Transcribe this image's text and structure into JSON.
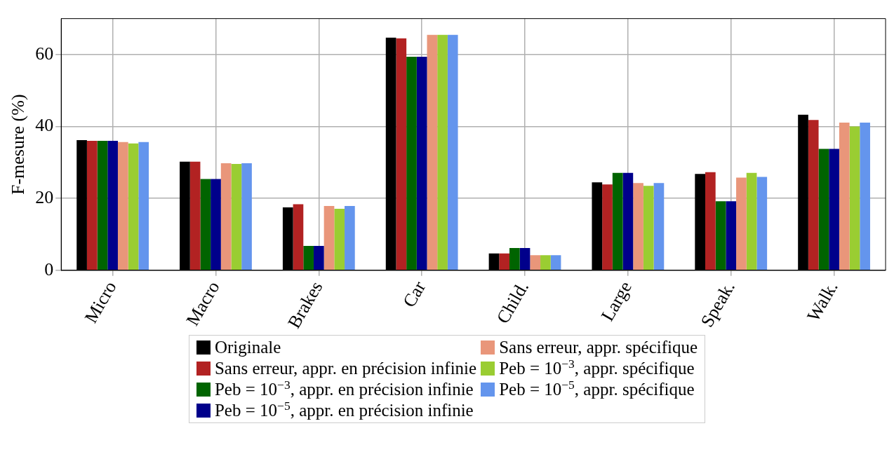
{
  "chart_data": {
    "type": "bar",
    "ylabel": "F-mesure (%)",
    "categories": [
      "Micro",
      "Macro",
      "Brakes",
      "Car",
      "Child.",
      "Large",
      "Speak.",
      "Walk."
    ],
    "ylim": [
      0,
      70
    ],
    "yticks": [
      0,
      20,
      40,
      60
    ],
    "grid": true,
    "legend": "bottom",
    "series": [
      {
        "name": "Originale",
        "color": "#000000",
        "values": [
          36.2,
          30.2,
          17.5,
          64.7,
          4.7,
          24.5,
          26.8,
          43.3
        ]
      },
      {
        "name": "Sans erreur, appr. en précision infinie",
        "color": "#b22222",
        "values": [
          36.0,
          30.2,
          18.4,
          64.5,
          4.7,
          23.9,
          27.3,
          41.8
        ]
      },
      {
        "name": "Peb = 10$^{−3}$, appr. en précision infinie",
        "color": "#006400",
        "values": [
          36.0,
          25.4,
          6.8,
          59.4,
          6.2,
          27.1,
          19.2,
          33.8
        ]
      },
      {
        "name": "Peb = 10$^{−5}$, appr. en précision infinie",
        "color": "#00008b",
        "values": [
          36.0,
          25.4,
          6.8,
          59.4,
          6.2,
          27.1,
          19.2,
          33.8
        ]
      },
      {
        "name": "Sans erreur, appr. spécifique",
        "color": "#e9967a",
        "values": [
          35.7,
          29.8,
          17.9,
          65.5,
          4.2,
          24.3,
          25.8,
          41.1
        ]
      },
      {
        "name": "Peb = 10$^{−3}$, appr. spécifique",
        "color": "#9acd32",
        "values": [
          35.3,
          29.6,
          17.1,
          65.5,
          4.2,
          23.5,
          27.1,
          40.0
        ]
      },
      {
        "name": "Peb = 10$^{−5}$, appr. spécifique",
        "color": "#6495ed",
        "values": [
          35.7,
          29.8,
          17.9,
          65.5,
          4.2,
          24.3,
          26.0,
          41.1
        ]
      }
    ]
  }
}
